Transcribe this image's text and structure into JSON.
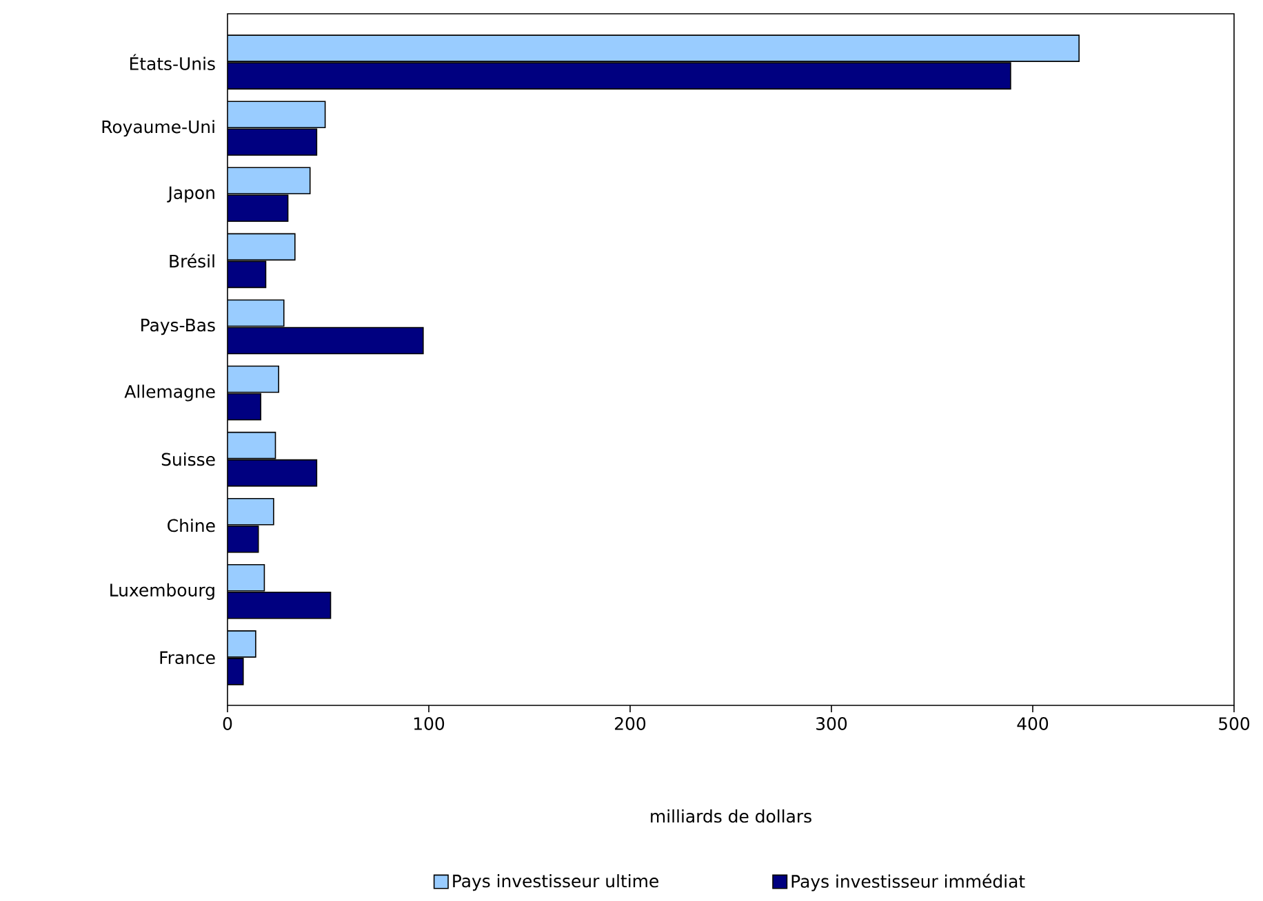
{
  "chart_data": {
    "type": "bar",
    "orientation": "horizontal",
    "xlabel": "milliards de dollars",
    "categories": [
      "États-Unis",
      "Royaume-Uni",
      "Japon",
      "Brésil",
      "Pays-Bas",
      "Allemagne",
      "Suisse",
      "Chine",
      "Luxembourg",
      "France"
    ],
    "series": [
      {
        "name": "Pays investisseur ultime",
        "color": "#99ccff",
        "values": [
          423,
          48.5,
          41,
          33.5,
          28,
          25.4,
          23.8,
          22.9,
          18.3,
          14
        ]
      },
      {
        "name": "Pays investisseur immédiat",
        "color": "#000080",
        "values": [
          389,
          44.3,
          30,
          19,
          97.2,
          16.5,
          44.3,
          15.3,
          51.2,
          7.8
        ]
      }
    ],
    "xlim": [
      0,
      500
    ],
    "xticks": [
      0,
      100,
      200,
      300,
      400,
      500
    ],
    "legend": "bottom",
    "grid": false
  }
}
